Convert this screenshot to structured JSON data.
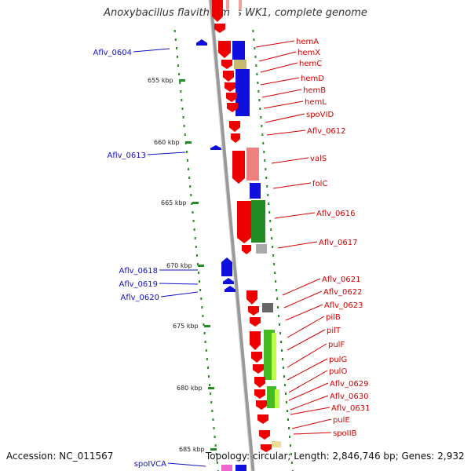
{
  "title": "Anoxybacillus flavithermus WK1, complete genome",
  "footer": {
    "accession": "Accession: NC_011567",
    "summary": "Topology: circular; Length: 2,846,746 bp; Genes: 2,932"
  },
  "colors": {
    "backbone": "#999999",
    "forward_gene": "#ee0000",
    "reverse_gene": "#1010dd",
    "tick": "#228b22",
    "label_forward": "#d40000",
    "label_reverse": "#1010c8"
  },
  "kbp_ticks": [
    "655 kbp",
    "660 kbp",
    "665 kbp",
    "670 kbp",
    "675 kbp",
    "680 kbp",
    "685 kbp"
  ],
  "labels_forward": [
    "hemA",
    "hemX",
    "hemC",
    "hemD",
    "hemB",
    "hemL",
    "spoVID",
    "Aflv_0612",
    "valS",
    "folC",
    "Aflv_0616",
    "Aflv_0617",
    "Aflv_0621",
    "Aflv_0622",
    "Aflv_0623",
    "pilB",
    "pilT",
    "pulF",
    "pulG",
    "pulO",
    "Aflv_0629",
    "Aflv_0630",
    "Aflv_0631",
    "pulE",
    "spoIIB"
  ],
  "labels_reverse": [
    "Aflv_0604",
    "Aflv_0613",
    "Aflv_0618",
    "Aflv_0619",
    "Aflv_0620",
    "spoIVCA"
  ]
}
